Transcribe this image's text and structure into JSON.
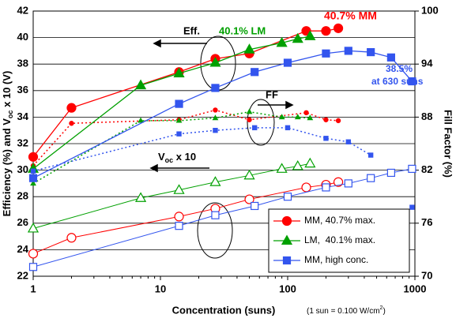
{
  "chart_data": {
    "type": "line",
    "x_label": "Concentration (suns)",
    "x_note": [
      "(1 sun = 0.100 W/cm",
      "2",
      ")"
    ],
    "y_label": [
      "Efficiency (%) and V",
      "oc",
      " x 10 (V)"
    ],
    "y2_label": "Fill Factor (%)",
    "annotations": {
      "mm_max": "40.7% MM",
      "lm_max": "40.1% LM",
      "hc_max": "38.5%",
      "hc_suns": "at 630 suns",
      "eff": "Eff.",
      "ff": "FF",
      "voc": [
        "V",
        "oc",
        " x 10"
      ]
    },
    "xlim": [
      1,
      1000
    ],
    "xticks": [
      1,
      10,
      100,
      1000
    ],
    "xscale": "log",
    "ylim": [
      22,
      42
    ],
    "yticks": [
      22,
      24,
      26,
      28,
      30,
      32,
      34,
      36,
      38,
      40,
      42
    ],
    "y2lim": [
      70,
      100
    ],
    "y2ticks": [
      70,
      76,
      82,
      88,
      94,
      100
    ],
    "grid": true,
    "legend": "lower right",
    "series": [
      {
        "name": "MM, 40.7% max.",
        "color": "#ff0000",
        "marker": "circle",
        "x": [
          1,
          2,
          14,
          27,
          50,
          140,
          200,
          250
        ],
        "efficiency": [
          31.0,
          34.7,
          37.4,
          38.4,
          38.8,
          40.5,
          40.5,
          40.7
        ],
        "fill_factor": [
          82.5,
          87.3,
          87.7,
          88.8,
          87.7,
          88.5,
          87.7,
          87.6
        ],
        "voc_x10": [
          23.7,
          24.9,
          26.5,
          27.1,
          27.8,
          28.7,
          28.9,
          29.1
        ]
      },
      {
        "name": "LM,  40.1% max.",
        "color": "#00a000",
        "marker": "triangle",
        "x": [
          1,
          7,
          14,
          27,
          50,
          90,
          120,
          150
        ],
        "efficiency": [
          30.1,
          36.4,
          37.3,
          38.1,
          39.1,
          39.6,
          39.9,
          40.1
        ],
        "fill_factor": [
          80.5,
          87.6,
          87.6,
          87.9,
          88.6,
          88.0,
          88.0,
          87.9
        ],
        "voc_x10": [
          25.6,
          27.9,
          28.5,
          29.1,
          29.6,
          30.1,
          30.3,
          30.5
        ]
      },
      {
        "name": "MM, high conc.",
        "color": "#3355ee",
        "marker": "square",
        "x": [
          1,
          14,
          27,
          55,
          100,
          200,
          300,
          450,
          650,
          950
        ],
        "efficiency": [
          29.4,
          35.0,
          36.2,
          37.4,
          38.1,
          38.8,
          39.0,
          38.9,
          38.5,
          36.7
        ],
        "fill_factor": [
          81.9,
          86.1,
          86.5,
          86.8,
          86.8,
          85.6,
          85.2,
          83.7,
          null,
          77.8
        ],
        "voc_x10": [
          22.7,
          25.8,
          26.6,
          27.3,
          28.0,
          28.7,
          29.0,
          29.4,
          29.8,
          30.1
        ]
      }
    ]
  }
}
